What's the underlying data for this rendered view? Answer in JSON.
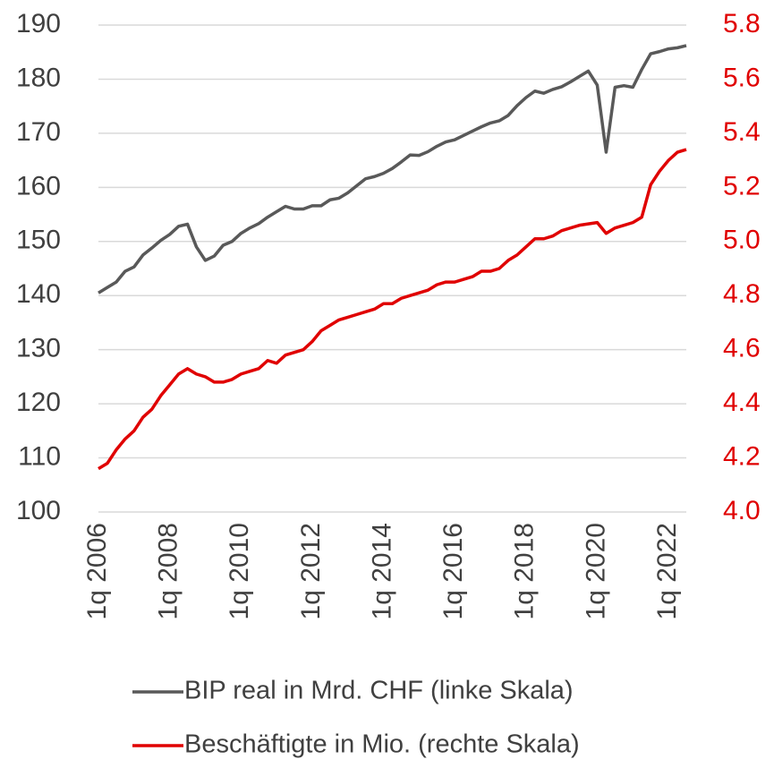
{
  "chart_data": {
    "type": "line",
    "categories": [
      "1q 2006",
      null,
      null,
      null,
      null,
      null,
      null,
      null,
      "1q 2008",
      null,
      null,
      null,
      null,
      null,
      null,
      null,
      "1q 2010",
      null,
      null,
      null,
      null,
      null,
      null,
      null,
      "1q 2012",
      null,
      null,
      null,
      null,
      null,
      null,
      null,
      "1q 2014",
      null,
      null,
      null,
      null,
      null,
      null,
      null,
      "1q 2016",
      null,
      null,
      null,
      null,
      null,
      null,
      null,
      "1q 2018",
      null,
      null,
      null,
      null,
      null,
      null,
      null,
      "1q 2020",
      null,
      null,
      null,
      null,
      null,
      null,
      null,
      "1q 2022",
      null,
      null
    ],
    "series": [
      {
        "name": "BIP real in Mrd. CHF (linke Skala)",
        "color": "#595959",
        "values": [
          140.5,
          141.5,
          142.5,
          144.5,
          145.3,
          147.5,
          148.8,
          150.2,
          151.3,
          152.8,
          153.2,
          149.0,
          146.5,
          147.3,
          149.3,
          150.0,
          151.5,
          152.5,
          153.3,
          154.5,
          155.5,
          156.5,
          156.0,
          156.0,
          156.6,
          156.6,
          157.7,
          158.0,
          159.0,
          160.3,
          161.6,
          162.0,
          162.6,
          163.5,
          164.7,
          166.0,
          165.9,
          166.6,
          167.6,
          168.4,
          168.8,
          169.6,
          170.4,
          171.2,
          171.9,
          172.3,
          173.3,
          175.1,
          176.6,
          177.8,
          177.4,
          178.1,
          178.6,
          179.5,
          180.5,
          181.5,
          178.9,
          166.5,
          178.5,
          178.8,
          178.5,
          181.8,
          184.7,
          185.1,
          185.6,
          185.8,
          186.2
        ]
      },
      {
        "name": "Beschäftigte in Mio. (rechte Skala)",
        "color": "#e00000",
        "axis": "y2",
        "values": [
          4.16,
          4.18,
          4.23,
          4.27,
          4.3,
          4.35,
          4.38,
          4.43,
          4.47,
          4.51,
          4.53,
          4.51,
          4.5,
          4.48,
          4.48,
          4.49,
          4.51,
          4.52,
          4.53,
          4.56,
          4.55,
          4.58,
          4.59,
          4.6,
          4.63,
          4.67,
          4.69,
          4.71,
          4.72,
          4.73,
          4.74,
          4.75,
          4.77,
          4.77,
          4.79,
          4.8,
          4.81,
          4.82,
          4.84,
          4.85,
          4.85,
          4.86,
          4.87,
          4.89,
          4.89,
          4.9,
          4.93,
          4.95,
          4.98,
          5.01,
          5.01,
          5.02,
          5.04,
          5.05,
          5.06,
          5.065,
          5.07,
          5.03,
          5.05,
          5.06,
          5.07,
          5.09,
          5.21,
          5.26,
          5.3,
          5.33,
          5.34
        ]
      }
    ],
    "ylim": [
      100,
      190
    ],
    "yticks": [
      100,
      110,
      120,
      130,
      140,
      150,
      160,
      170,
      180,
      190
    ],
    "y2lim": [
      4.0,
      5.8
    ],
    "y2ticks": [
      {
        "value": 4,
        "label": "4.0"
      },
      4.2,
      4.4,
      4.6,
      4.8,
      {
        "value": 5,
        "label": "5.0"
      },
      5.2,
      5.4,
      5.6,
      5.8
    ],
    "grid": true,
    "legend": "bottom"
  }
}
